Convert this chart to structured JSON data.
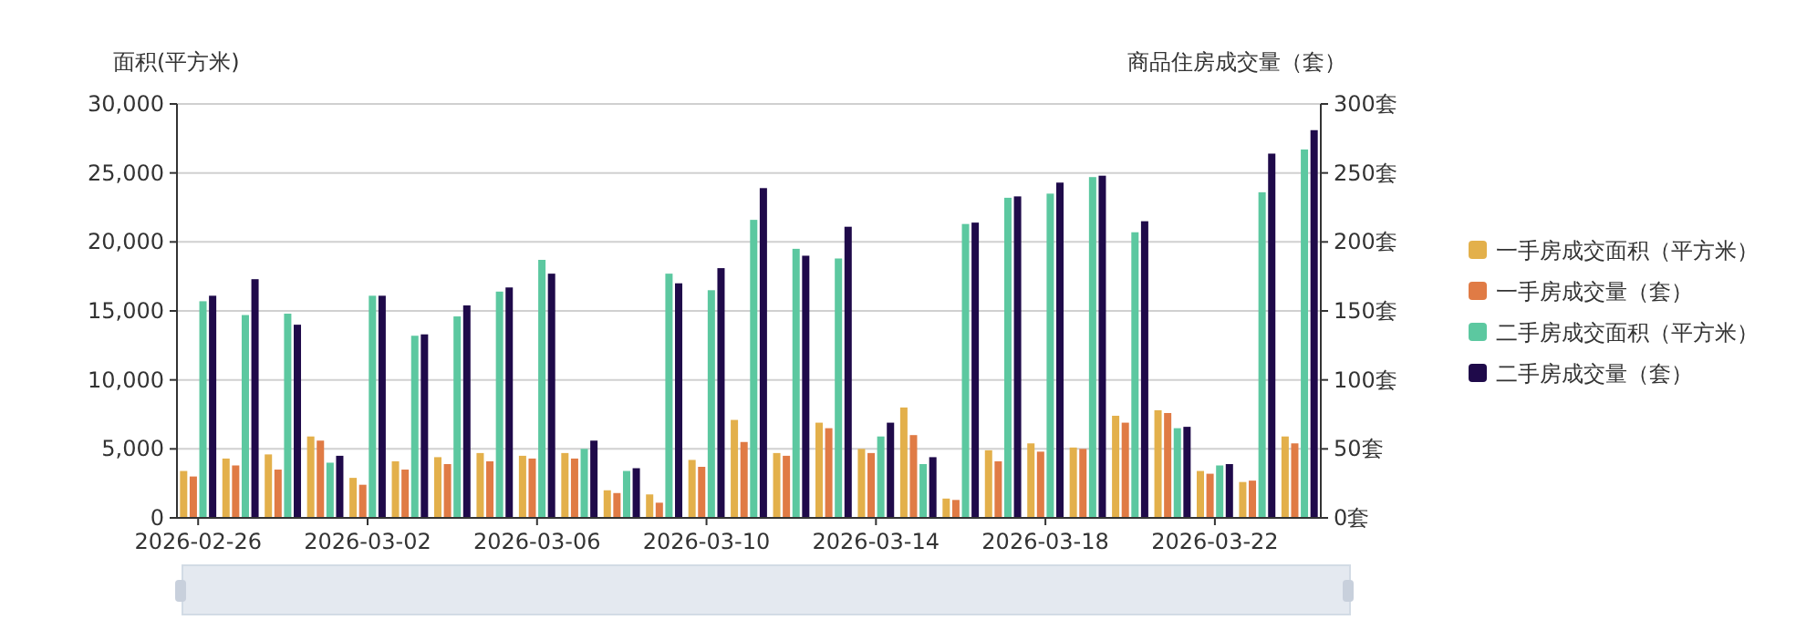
{
  "chart_data": {
    "type": "bar",
    "ylabel": "面积(平方米)",
    "y2label": "商品住房成交量（套）",
    "categories": [
      "2026-02-26",
      null,
      null,
      null,
      "2026-03-02",
      null,
      null,
      null,
      "2026-03-06",
      null,
      null,
      null,
      "2026-03-10",
      null,
      null,
      null,
      "2026-03-14",
      null,
      null,
      null,
      "2026-03-18",
      null,
      null,
      null,
      "2026-03-22",
      null,
      null
    ],
    "series": [
      {
        "name": "一手房成交面积（平方米）",
        "color": "#e3b04b",
        "values": [
          3400,
          4300,
          4600,
          5900,
          2900,
          4100,
          4400,
          4700,
          4500,
          4700,
          2000,
          1700,
          4200,
          7100,
          4700,
          6900,
          5000,
          8000,
          1400,
          4900,
          5400,
          5100,
          7400,
          7800,
          3400,
          2600,
          5900
        ]
      },
      {
        "name": "一手房成交量（套）",
        "color": "#e07b45",
        "axis": "y2",
        "values": [
          30,
          38,
          35,
          56,
          24,
          35,
          39,
          41,
          43,
          43,
          18,
          11,
          37,
          55,
          45,
          65,
          47,
          60,
          13,
          41,
          48,
          50,
          69,
          76,
          32,
          27,
          54
        ]
      },
      {
        "name": "二手房成交面积（平方米）",
        "color": "#5cc8a0",
        "values": [
          15700,
          14700,
          14800,
          4000,
          16100,
          13200,
          14600,
          16400,
          18700,
          5000,
          3400,
          17700,
          16500,
          21600,
          19500,
          18800,
          5900,
          3900,
          21300,
          23200,
          23500,
          24700,
          20700,
          6500,
          3800,
          23600,
          26700
        ]
      },
      {
        "name": "二手房成交量（套）",
        "color": "#1f0a4a",
        "axis": "y2",
        "values": [
          161,
          173,
          140,
          45,
          161,
          133,
          154,
          167,
          177,
          56,
          36,
          170,
          181,
          239,
          190,
          211,
          69,
          44,
          214,
          233,
          243,
          248,
          215,
          66,
          39,
          264,
          281
        ]
      }
    ],
    "ylim": [
      0,
      30000
    ],
    "yticks": [
      0,
      {
        "value": 5000,
        "label": "5,000"
      },
      {
        "value": 10000,
        "label": "10,000"
      },
      {
        "value": 15000,
        "label": "15,000"
      },
      {
        "value": 20000,
        "label": "20,000"
      },
      {
        "value": 25000,
        "label": "25,000"
      },
      {
        "value": 30000,
        "label": "30,000"
      }
    ],
    "y2lim": [
      0,
      300
    ],
    "y2ticks": [
      {
        "value": 0,
        "label": "0套"
      },
      {
        "value": 50,
        "label": "50套"
      },
      {
        "value": 100,
        "label": "100套"
      },
      {
        "value": 150,
        "label": "150套"
      },
      {
        "value": 200,
        "label": "200套"
      },
      {
        "value": 250,
        "label": "250套"
      },
      {
        "value": 300,
        "label": "300套"
      }
    ],
    "grid": "y",
    "legend": "right"
  }
}
